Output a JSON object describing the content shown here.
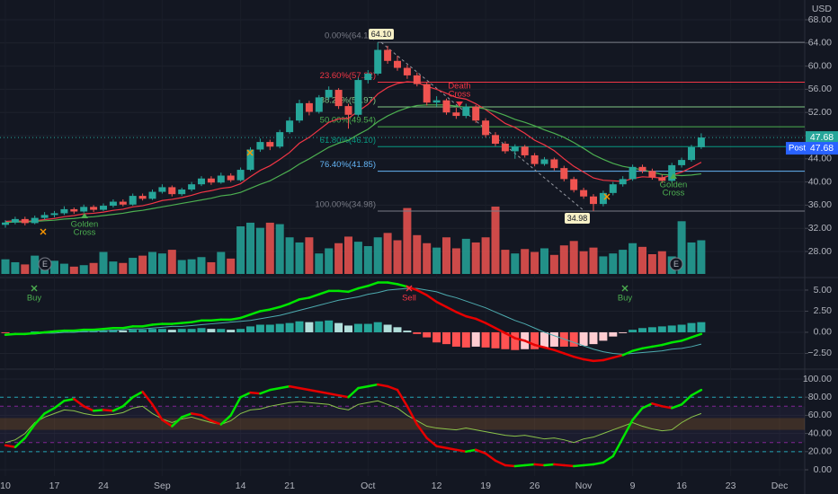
{
  "chart_data": [
    {
      "type": "candlestick",
      "currency": "USD",
      "ylim": [
        23.66,
        71.41
      ],
      "yticks": [
        {
          "value": 28,
          "label": "28.00"
        },
        {
          "value": 32,
          "label": "32.00"
        },
        {
          "value": 36,
          "label": "36.00"
        },
        {
          "value": 40,
          "label": "40.00"
        },
        {
          "value": 44,
          "label": "44.00"
        },
        {
          "value": 48,
          "label": "48.00"
        },
        {
          "value": 52,
          "label": "52.00"
        },
        {
          "value": 56,
          "label": "56.00"
        },
        {
          "value": 60,
          "label": "60.00"
        },
        {
          "value": 64,
          "label": "64.00"
        },
        {
          "value": 68,
          "label": "68.00"
        }
      ],
      "xticks": [
        {
          "value": 0,
          "label": "10"
        },
        {
          "value": 5,
          "label": "17"
        },
        {
          "value": 10,
          "label": "24"
        },
        {
          "value": 16,
          "label": "Sep"
        },
        {
          "value": 24,
          "label": "14"
        },
        {
          "value": 29,
          "label": "21"
        },
        {
          "value": 37,
          "label": "Oct"
        },
        {
          "value": 44,
          "label": "12"
        },
        {
          "value": 49,
          "label": "19"
        },
        {
          "value": 54,
          "label": "26"
        },
        {
          "value": 59,
          "label": "Nov"
        },
        {
          "value": 64,
          "label": "9"
        },
        {
          "value": 69,
          "label": "16"
        },
        {
          "value": 74,
          "label": "23"
        },
        {
          "value": 79,
          "label": "Dec"
        }
      ],
      "up_color": "#26a69a",
      "down_color": "#ef5350",
      "ohlc": [
        [
          32.6,
          33.4,
          32.1,
          33.0
        ],
        [
          33.0,
          34.0,
          32.7,
          33.6
        ],
        [
          33.6,
          34.0,
          32.5,
          32.9
        ],
        [
          32.9,
          34.2,
          32.7,
          33.8
        ],
        [
          33.8,
          34.8,
          33.5,
          34.3
        ],
        [
          34.3,
          35.0,
          33.9,
          34.6
        ],
        [
          34.6,
          35.8,
          34.3,
          35.3
        ],
        [
          35.3,
          35.6,
          34.5,
          34.9
        ],
        [
          34.9,
          36.1,
          34.7,
          35.7
        ],
        [
          35.7,
          36.0,
          34.8,
          35.2
        ],
        [
          35.2,
          36.3,
          35.0,
          35.9
        ],
        [
          35.9,
          37.0,
          35.6,
          36.6
        ],
        [
          36.6,
          37.0,
          35.8,
          36.1
        ],
        [
          36.1,
          38.0,
          35.9,
          37.6
        ],
        [
          37.6,
          38.0,
          36.8,
          37.1
        ],
        [
          37.1,
          38.7,
          36.9,
          38.3
        ],
        [
          38.3,
          39.6,
          38.0,
          39.1
        ],
        [
          39.1,
          39.4,
          37.5,
          37.9
        ],
        [
          37.9,
          39.0,
          37.6,
          38.7
        ],
        [
          38.7,
          40.0,
          38.4,
          39.6
        ],
        [
          39.6,
          41.0,
          39.3,
          40.6
        ],
        [
          40.6,
          41.0,
          39.5,
          39.9
        ],
        [
          39.9,
          41.6,
          39.7,
          41.1
        ],
        [
          41.1,
          41.5,
          40.0,
          40.3
        ],
        [
          40.3,
          42.5,
          40.1,
          42.1
        ],
        [
          42.1,
          46.0,
          41.9,
          45.6
        ],
        [
          45.6,
          47.5,
          45.2,
          46.9
        ],
        [
          46.9,
          47.3,
          45.5,
          46.1
        ],
        [
          46.1,
          49.0,
          45.8,
          48.6
        ],
        [
          48.6,
          51.2,
          48.3,
          50.6
        ],
        [
          50.6,
          54.2,
          50.2,
          53.6
        ],
        [
          53.6,
          54.0,
          51.5,
          52.1
        ],
        [
          52.1,
          55.0,
          51.8,
          54.6
        ],
        [
          54.6,
          56.5,
          54.2,
          55.9
        ],
        [
          55.9,
          56.2,
          52.6,
          53.1
        ],
        [
          53.1,
          53.5,
          49.2,
          51.6
        ],
        [
          51.6,
          58.0,
          51.3,
          57.6
        ],
        [
          57.6,
          59.3,
          57.0,
          58.7
        ],
        [
          58.7,
          64.1,
          58.4,
          62.8
        ],
        [
          62.8,
          63.5,
          60.4,
          60.9
        ],
        [
          60.9,
          61.8,
          59.2,
          59.7
        ],
        [
          59.7,
          60.2,
          57.8,
          58.4
        ],
        [
          58.4,
          58.9,
          56.5,
          56.9
        ],
        [
          56.9,
          57.2,
          53.2,
          53.7
        ],
        [
          53.7,
          54.8,
          53.0,
          54.1
        ],
        [
          54.1,
          54.4,
          51.6,
          52.0
        ],
        [
          52.0,
          52.8,
          50.9,
          51.4
        ],
        [
          51.4,
          53.5,
          51.0,
          53.0
        ],
        [
          53.0,
          53.3,
          50.2,
          50.6
        ],
        [
          50.6,
          51.0,
          47.7,
          48.1
        ],
        [
          48.1,
          48.6,
          46.2,
          46.6
        ],
        [
          46.6,
          47.0,
          44.9,
          45.3
        ],
        [
          45.3,
          46.5,
          44.0,
          46.1
        ],
        [
          46.1,
          46.4,
          44.2,
          44.6
        ],
        [
          44.6,
          45.0,
          42.7,
          43.1
        ],
        [
          43.1,
          44.3,
          42.8,
          43.9
        ],
        [
          43.9,
          44.2,
          42.0,
          42.4
        ],
        [
          42.4,
          42.8,
          40.1,
          40.5
        ],
        [
          40.5,
          40.9,
          38.2,
          38.6
        ],
        [
          38.6,
          39.0,
          37.1,
          37.5
        ],
        [
          37.5,
          37.9,
          34.98,
          36.2
        ],
        [
          36.2,
          38.5,
          35.8,
          38.1
        ],
        [
          38.1,
          40.0,
          37.7,
          39.6
        ],
        [
          39.6,
          41.0,
          39.2,
          40.5
        ],
        [
          40.5,
          43.0,
          40.2,
          42.6
        ],
        [
          42.6,
          43.0,
          41.5,
          41.9
        ],
        [
          41.9,
          42.3,
          40.4,
          40.8
        ],
        [
          40.8,
          41.3,
          39.8,
          40.2
        ],
        [
          40.2,
          43.3,
          39.9,
          42.9
        ],
        [
          42.9,
          44.2,
          42.5,
          43.8
        ],
        [
          43.8,
          46.4,
          43.5,
          46.0
        ],
        [
          46.0,
          48.4,
          45.7,
          47.68
        ]
      ],
      "volume": [
        2.0,
        1.6,
        1.3,
        2.5,
        1.5,
        1.8,
        1.4,
        1.0,
        1.2,
        1.5,
        3.0,
        1.7,
        1.5,
        2.2,
        2.5,
        3.0,
        2.8,
        3.3,
        1.9,
        2.0,
        2.3,
        1.6,
        3.0,
        2.1,
        6.5,
        7.0,
        6.3,
        7.0,
        6.8,
        5.0,
        4.3,
        5.0,
        2.8,
        3.5,
        4.2,
        5.1,
        4.4,
        3.8,
        5.0,
        5.6,
        4.6,
        9.0,
        5.3,
        4.2,
        3.6,
        5.0,
        3.5,
        4.8,
        4.3,
        5.0,
        9.2,
        3.3,
        2.8,
        3.4,
        3.0,
        3.5,
        2.6,
        3.9,
        4.5,
        3.1,
        3.6,
        2.4,
        2.8,
        3.3,
        4.2,
        3.7,
        2.7,
        3.1,
        2.4,
        7.2,
        4.3,
        4.6
      ],
      "series": [
        {
          "color": "#f23645",
          "values": [
            33.2,
            33.3,
            33.2,
            33.3,
            33.5,
            33.7,
            34.0,
            34.2,
            34.5,
            34.6,
            34.8,
            35.1,
            35.3,
            35.7,
            35.9,
            36.3,
            36.8,
            37.0,
            37.3,
            37.7,
            38.2,
            38.5,
            38.9,
            39.1,
            39.7,
            40.9,
            42.0,
            42.8,
            43.9,
            45.1,
            46.7,
            47.7,
            49.0,
            50.3,
            50.9,
            51.0,
            52.2,
            53.4,
            55.2,
            56.3,
            57.0,
            57.3,
            57.2,
            56.5,
            56.0,
            55.3,
            54.6,
            54.3,
            53.5,
            52.5,
            51.3,
            50.1,
            49.4,
            48.4,
            47.2,
            46.4,
            45.4,
            44.0,
            42.7,
            41.7,
            40.7,
            40.3,
            40.2,
            40.1,
            40.6,
            40.9,
            40.8,
            40.7,
            41.2,
            41.7,
            42.5,
            43.4
          ]
        },
        {
          "color": "#4caf50",
          "values": [
            33.0,
            33.1,
            33.1,
            33.2,
            33.3,
            33.4,
            33.6,
            33.7,
            33.9,
            34.0,
            34.2,
            34.4,
            34.6,
            34.9,
            35.1,
            35.4,
            35.7,
            36.0,
            36.3,
            36.6,
            36.9,
            37.2,
            37.6,
            37.8,
            38.2,
            38.9,
            39.6,
            40.2,
            41.1,
            42.0,
            43.1,
            44.0,
            45.0,
            46.0,
            46.7,
            47.2,
            48.2,
            49.1,
            50.4,
            51.4,
            52.2,
            52.8,
            53.2,
            53.3,
            53.3,
            53.3,
            53.1,
            52.9,
            52.9,
            52.6,
            52.1,
            51.5,
            50.8,
            50.3,
            49.7,
            49.0,
            48.4,
            47.7,
            46.8,
            45.8,
            44.7,
            43.9,
            43.2,
            42.7,
            42.4,
            42.1,
            41.7,
            41.3,
            41.2,
            41.1,
            41.2,
            41.4
          ]
        }
      ],
      "fib_levels": [
        {
          "value": 64.1,
          "label": "0.00%(64.10)",
          "color": "#787b86"
        },
        {
          "value": 57.22,
          "label": "23.60%(57.22)",
          "color": "#f23645"
        },
        {
          "value": 52.97,
          "label": "38.20%(52.97)",
          "color": "#81c784"
        },
        {
          "value": 49.54,
          "label": "50.00%(49.54)",
          "color": "#4caf50"
        },
        {
          "value": 46.1,
          "label": "61.80%(46.10)",
          "color": "#089981"
        },
        {
          "value": 41.85,
          "label": "76.40%(41.85)",
          "color": "#64b5f6"
        },
        {
          "value": 34.98,
          "label": "100.00%(34.98)",
          "color": "#787b86"
        }
      ],
      "high_label": {
        "value": 64.1,
        "label": "64.10"
      },
      "low_label": {
        "value": 34.98,
        "label": "34.98"
      },
      "last_price": {
        "value": 47.68,
        "label": "47.68"
      },
      "post_text": "Post",
      "earnings_marker": "E",
      "golden_cross": [
        "Golden",
        "Cross"
      ],
      "death_cross": [
        "Death",
        "Cross"
      ]
    },
    {
      "type": "macd",
      "ylim": [
        -4.26,
        6.38
      ],
      "yticks": [
        {
          "value": 5,
          "label": "5.00"
        },
        {
          "value": 2.5,
          "label": "2.50"
        },
        {
          "value": 0,
          "label": "0.00"
        },
        {
          "value": -2.5,
          "label": "−2.50"
        }
      ],
      "macd": [
        -0.3,
        -0.2,
        -0.2,
        -0.1,
        0.0,
        0.1,
        0.2,
        0.2,
        0.3,
        0.3,
        0.4,
        0.5,
        0.5,
        0.7,
        0.7,
        0.9,
        1.0,
        1.0,
        1.1,
        1.2,
        1.4,
        1.4,
        1.5,
        1.5,
        1.7,
        2.1,
        2.5,
        2.7,
        3.0,
        3.4,
        3.9,
        4.1,
        4.5,
        4.9,
        4.9,
        4.8,
        5.2,
        5.5,
        5.9,
        5.9,
        5.7,
        5.4,
        5.0,
        4.4,
        3.6,
        3.0,
        2.4,
        1.9,
        1.6,
        1.1,
        0.5,
        -0.1,
        -0.7,
        -1.0,
        -1.5,
        -1.8,
        -2.1,
        -2.5,
        -2.9,
        -3.2,
        -3.4,
        -3.3,
        -3.0,
        -2.7,
        -2.2,
        -1.9,
        -1.7,
        -1.5,
        -1.2,
        -1.0,
        -0.6,
        -0.2
      ],
      "signal": [
        -0.2,
        -0.2,
        -0.2,
        -0.2,
        -0.1,
        -0.1,
        0.0,
        0.0,
        0.1,
        0.1,
        0.2,
        0.2,
        0.3,
        0.4,
        0.4,
        0.5,
        0.6,
        0.7,
        0.7,
        0.8,
        0.9,
        1.0,
        1.1,
        1.2,
        1.3,
        1.4,
        1.6,
        1.8,
        2.0,
        2.3,
        2.6,
        2.9,
        3.2,
        3.5,
        3.8,
        4.0,
        4.2,
        4.5,
        4.7,
        5.0,
        5.1,
        5.2,
        5.2,
        5.0,
        4.8,
        4.4,
        4.1,
        3.7,
        3.3,
        2.9,
        2.4,
        1.9,
        1.4,
        1.0,
        0.5,
        0.0,
        -0.4,
        -0.8,
        -1.2,
        -1.6,
        -2.0,
        -2.3,
        -2.5,
        -2.6,
        -2.5,
        -2.4,
        -2.3,
        -2.2,
        -2.0,
        -1.9,
        -1.7,
        -1.4
      ],
      "histogram": [
        -0.1,
        0.0,
        0.0,
        0.1,
        0.1,
        0.2,
        0.2,
        0.2,
        0.2,
        0.2,
        0.2,
        0.3,
        0.2,
        0.3,
        0.3,
        0.4,
        0.4,
        0.3,
        0.4,
        0.4,
        0.5,
        0.4,
        0.4,
        0.3,
        0.4,
        0.7,
        0.9,
        0.9,
        1.0,
        1.1,
        1.3,
        1.2,
        1.3,
        1.4,
        1.1,
        0.8,
        1.0,
        1.0,
        1.2,
        0.9,
        0.6,
        0.2,
        -0.2,
        -0.6,
        -1.2,
        -1.4,
        -1.7,
        -1.8,
        -1.7,
        -1.8,
        -1.9,
        -2.0,
        -2.1,
        -2.0,
        -2.0,
        -1.8,
        -1.7,
        -1.7,
        -1.7,
        -1.6,
        -1.4,
        -1.0,
        -0.5,
        -0.1,
        0.3,
        0.5,
        0.6,
        0.7,
        0.8,
        0.9,
        1.1,
        1.2
      ],
      "buy_text": "Buy",
      "sell_text": "Sell"
    },
    {
      "type": "oscillator",
      "ylim": [
        -6.9,
        109.9
      ],
      "yticks": [
        {
          "value": 0,
          "label": "0.00"
        },
        {
          "value": 20,
          "label": "20.00"
        },
        {
          "value": 40,
          "label": "40.00"
        },
        {
          "value": 60,
          "label": "60.00"
        },
        {
          "value": 80,
          "label": "80.00"
        },
        {
          "value": 100,
          "label": "100.00"
        }
      ],
      "levels": [
        80,
        70,
        30,
        20
      ],
      "band": [
        44,
        57
      ],
      "fast": [
        27,
        25,
        35,
        50,
        62,
        68,
        76,
        78,
        70,
        65,
        66,
        65,
        70,
        80,
        86,
        72,
        55,
        48,
        58,
        62,
        60,
        54,
        50,
        60,
        80,
        85,
        84,
        88,
        90,
        92,
        90,
        88,
        86,
        84,
        82,
        80,
        90,
        92,
        94,
        92,
        88,
        70,
        50,
        35,
        26,
        24,
        22,
        20,
        22,
        18,
        10,
        5,
        4,
        5,
        6,
        5,
        6,
        5,
        4,
        5,
        6,
        8,
        15,
        35,
        55,
        68,
        73,
        70,
        68,
        72,
        82,
        88
      ],
      "slow": [
        30,
        33,
        40,
        52,
        58,
        62,
        66,
        65,
        62,
        60,
        60,
        61,
        63,
        68,
        70,
        62,
        56,
        52,
        56,
        58,
        55,
        52,
        50,
        54,
        62,
        66,
        67,
        70,
        72,
        74,
        75,
        74,
        73,
        72,
        68,
        66,
        72,
        74,
        76,
        72,
        68,
        60,
        54,
        48,
        46,
        45,
        44,
        46,
        44,
        42,
        40,
        38,
        37,
        38,
        36,
        34,
        35,
        33,
        30,
        34,
        36,
        40,
        44,
        48,
        52,
        48,
        45,
        43,
        44,
        52,
        58,
        62
      ]
    }
  ]
}
